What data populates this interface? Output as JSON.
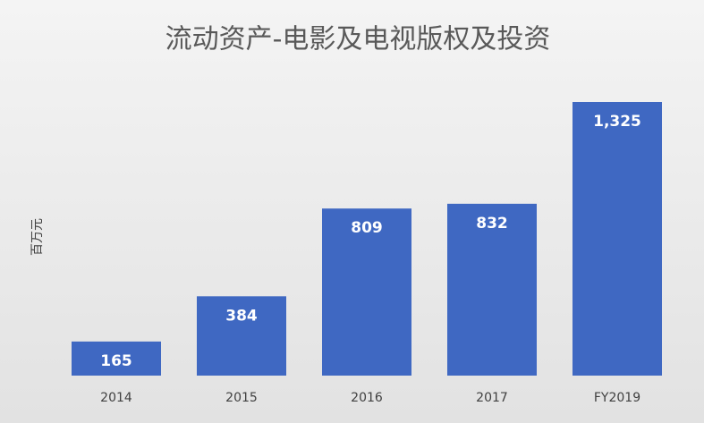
{
  "chart_data": {
    "type": "bar",
    "title": "流动资产-电影及电视版权及投资",
    "y_label": "百万元",
    "categories": [
      "2014",
      "2015",
      "2016",
      "2017",
      "FY2019"
    ],
    "values": [
      165,
      384,
      809,
      832,
      1325
    ],
    "value_labels": [
      "165",
      "384",
      "809",
      "832",
      "1,325"
    ],
    "color": "#3f68c2"
  }
}
